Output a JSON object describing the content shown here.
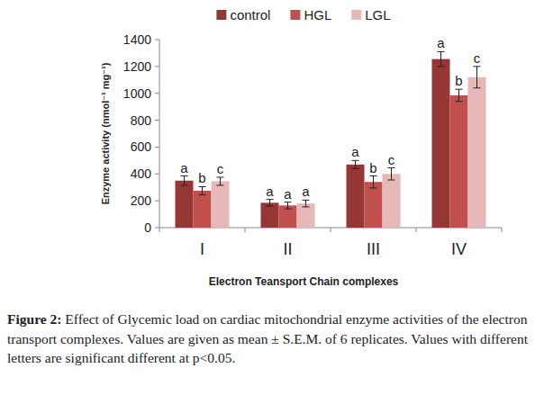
{
  "chart_data": {
    "type": "bar",
    "figure_label": "Figure 2:",
    "caption": "Effect of Glycemic load on cardiac mitochondrial enzyme activities of the electron transport complexes. Values are given as mean ± S.E.M. of 6 replicates. Values with different letters are significant different at p<0.05.",
    "x_label": "Electron Teansport Chain complexes",
    "y_label": "Enzyme activity (nmol⁻¹ mg⁻¹)",
    "categories": [
      "I",
      "II",
      "III",
      "IV"
    ],
    "series": [
      {
        "name": "control",
        "color": "#953735",
        "values": [
          350,
          185,
          470,
          1255
        ],
        "errors": [
          35,
          25,
          30,
          55
        ],
        "letters": [
          "a",
          "a",
          "a",
          "a"
        ]
      },
      {
        "name": "HGL",
        "color": "#c0504d",
        "values": [
          275,
          165,
          340,
          985
        ],
        "errors": [
          30,
          25,
          45,
          45
        ],
        "letters": [
          "b",
          "a",
          "b",
          "b"
        ]
      },
      {
        "name": "LGL",
        "color": "#e6b9b8",
        "values": [
          345,
          180,
          400,
          1120
        ],
        "errors": [
          30,
          25,
          45,
          80
        ],
        "letters": [
          "c",
          "a",
          "c",
          "c"
        ]
      }
    ],
    "ylim": [
      0,
      1400
    ],
    "yticks": [
      0,
      200,
      400,
      600,
      800,
      1000,
      1200,
      1400
    ],
    "grid": false,
    "legend": "top"
  }
}
